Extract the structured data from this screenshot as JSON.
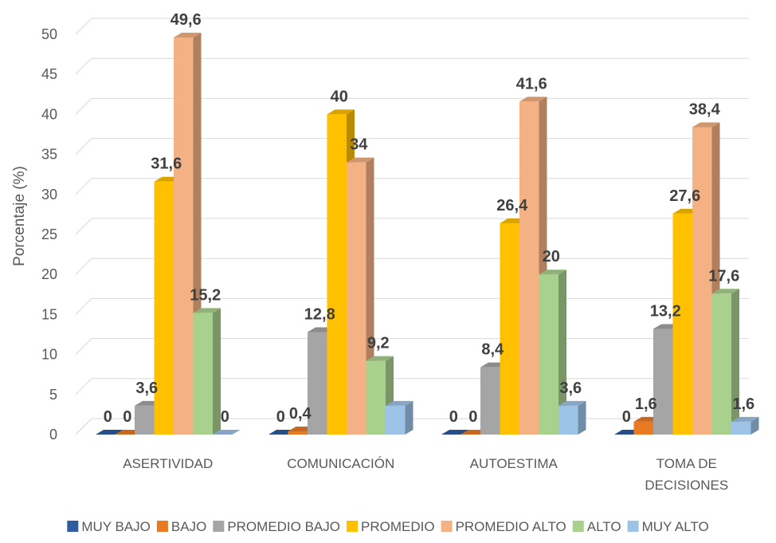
{
  "chart_data": {
    "type": "bar",
    "title": "",
    "xlabel": "",
    "ylabel": "Porcentaje (%)",
    "ylim": [
      0,
      50
    ],
    "yticks": [
      0,
      5,
      10,
      15,
      20,
      25,
      30,
      35,
      40,
      45,
      50
    ],
    "grid": true,
    "legend_position": "bottom",
    "categories": [
      [
        "ASERTIVIDAD"
      ],
      [
        "COMUNICACIÓN"
      ],
      [
        "AUTOESTIMA"
      ],
      [
        "TOMA DE",
        "DECISIONES"
      ]
    ],
    "series": [
      {
        "name": "MUY BAJO",
        "color": "#2E5C9E",
        "values": [
          0,
          0,
          0,
          0
        ],
        "labels": [
          "0",
          "0",
          "0",
          "0"
        ]
      },
      {
        "name": "BAJO",
        "color": "#E97A24",
        "values": [
          0,
          0.4,
          0,
          1.6
        ],
        "labels": [
          "0",
          "0,4",
          "0",
          "1,6"
        ]
      },
      {
        "name": "PROMEDIO BAJO",
        "color": "#A5A5A5",
        "values": [
          3.6,
          12.8,
          8.4,
          13.2
        ],
        "labels": [
          "3,6",
          "12,8",
          "8,4",
          "13,2"
        ]
      },
      {
        "name": "PROMEDIO",
        "color": "#FFC000",
        "values": [
          31.6,
          40,
          26.4,
          27.6
        ],
        "labels": [
          "31,6",
          "40",
          "26,4",
          "27,6"
        ]
      },
      {
        "name": "PROMEDIO ALTO",
        "color": "#F4B183",
        "values": [
          49.6,
          34,
          41.6,
          38.4
        ],
        "labels": [
          "49,6",
          "34",
          "41,6",
          "38,4"
        ]
      },
      {
        "name": "ALTO",
        "color": "#A9D18E",
        "values": [
          15.2,
          9.2,
          20,
          17.6
        ],
        "labels": [
          "15,2",
          "9,2",
          "20",
          "17,6"
        ]
      },
      {
        "name": "MUY ALTO",
        "color": "#9DC3E6",
        "values": [
          0,
          3.6,
          3.6,
          1.6
        ],
        "labels": [
          "0",
          "",
          "3,6",
          "1,6"
        ]
      }
    ]
  }
}
